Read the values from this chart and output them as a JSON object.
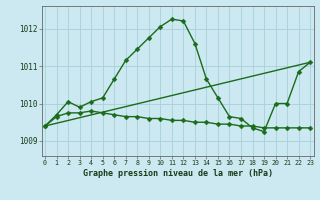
{
  "title": "Graphe pression niveau de la mer (hPa)",
  "background_color": "#cce8f0",
  "grid_color": "#a8d0dc",
  "line_color": "#1a6b1a",
  "x_ticks": [
    0,
    1,
    2,
    3,
    4,
    5,
    6,
    7,
    8,
    9,
    10,
    11,
    12,
    13,
    14,
    15,
    16,
    17,
    18,
    19,
    20,
    21,
    22,
    23
  ],
  "y_ticks": [
    1009,
    1010,
    1011,
    1012
  ],
  "ylim": [
    1008.6,
    1012.6
  ],
  "xlim": [
    -0.3,
    23.3
  ],
  "series": [
    {
      "x": [
        0,
        1,
        2,
        3,
        4,
        5,
        6,
        7,
        8,
        9,
        10,
        11,
        12,
        13,
        14,
        15,
        16,
        17,
        18,
        19,
        20,
        21,
        22,
        23
      ],
      "y": [
        1009.4,
        1009.7,
        1010.05,
        1009.9,
        1010.05,
        1010.15,
        1010.65,
        1011.15,
        1011.45,
        1011.75,
        1012.05,
        1012.25,
        1012.2,
        1011.6,
        1010.65,
        1010.15,
        1009.65,
        1009.6,
        1009.35,
        1009.25,
        1010.0,
        1010.0,
        1010.85,
        1011.1
      ]
    },
    {
      "x": [
        0,
        23
      ],
      "y": [
        1009.4,
        1011.1
      ]
    },
    {
      "x": [
        0,
        1,
        2,
        3,
        4,
        5,
        6,
        7,
        8,
        9,
        10,
        11,
        12,
        13,
        14,
        15,
        16,
        17,
        18,
        19,
        20,
        21,
        22,
        23
      ],
      "y": [
        1009.4,
        1009.65,
        1009.75,
        1009.75,
        1009.8,
        1009.75,
        1009.7,
        1009.65,
        1009.65,
        1009.6,
        1009.6,
        1009.55,
        1009.55,
        1009.5,
        1009.5,
        1009.45,
        1009.45,
        1009.4,
        1009.4,
        1009.35,
        1009.35,
        1009.35,
        1009.35,
        1009.35
      ]
    }
  ],
  "marker": "D",
  "markersize": 2.5,
  "linewidth": 1.0
}
